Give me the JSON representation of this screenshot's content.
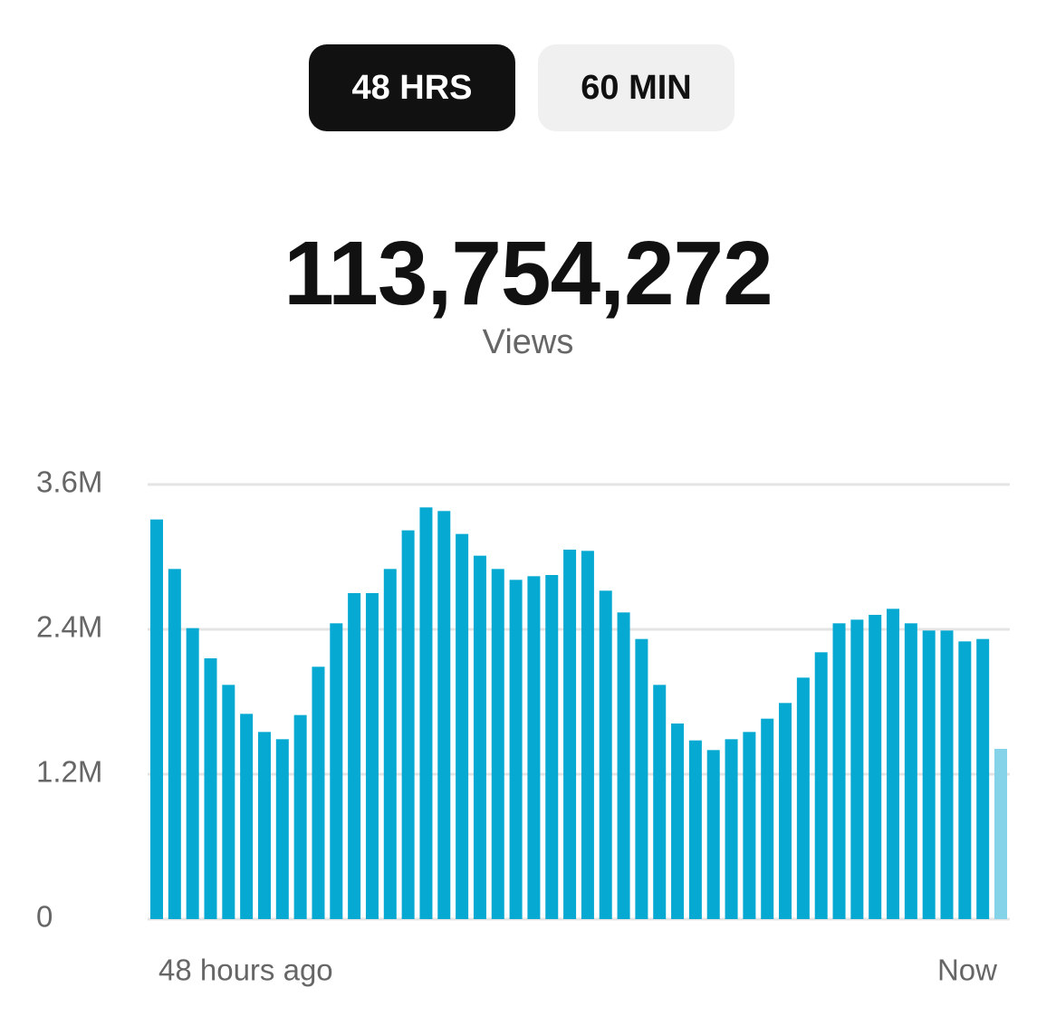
{
  "tabs": [
    {
      "label": "48 HRS",
      "selected": true
    },
    {
      "label": "60 MIN",
      "selected": false
    }
  ],
  "total": "113,754,272",
  "total_label": "Views",
  "chart_data": {
    "type": "bar",
    "categories": [
      "48 hours ago",
      null,
      null,
      null,
      null,
      null,
      null,
      null,
      null,
      null,
      null,
      null,
      null,
      null,
      null,
      null,
      null,
      null,
      null,
      null,
      null,
      null,
      null,
      null,
      null,
      null,
      null,
      null,
      null,
      null,
      null,
      null,
      null,
      null,
      null,
      null,
      null,
      null,
      null,
      null,
      null,
      null,
      null,
      null,
      null,
      null,
      null,
      "Now"
    ],
    "values": [
      3310000,
      2900000,
      2410000,
      2160000,
      1940000,
      1700000,
      1550000,
      1490000,
      1690000,
      2090000,
      2450000,
      2700000,
      2700000,
      2900000,
      3220000,
      3410000,
      3380000,
      3190000,
      3010000,
      2900000,
      2810000,
      2840000,
      2850000,
      3060000,
      3050000,
      2720000,
      2540000,
      2320000,
      1940000,
      1620000,
      1480000,
      1400000,
      1490000,
      1550000,
      1660000,
      1790000,
      2000000,
      2210000,
      2450000,
      2480000,
      2520000,
      2570000,
      2450000,
      2390000,
      2390000,
      2300000,
      2320000,
      1410000
    ],
    "color": "#05a9d2",
    "last_color": "#85d3e8",
    "ylim": [
      0,
      3600000
    ],
    "yticks": [
      {
        "value": 0,
        "label": "0"
      },
      {
        "value": 1200000,
        "label": "1.2M"
      },
      {
        "value": 2400000,
        "label": "2.4M"
      },
      {
        "value": 3600000,
        "label": "3.6M"
      }
    ],
    "grid": true
  }
}
